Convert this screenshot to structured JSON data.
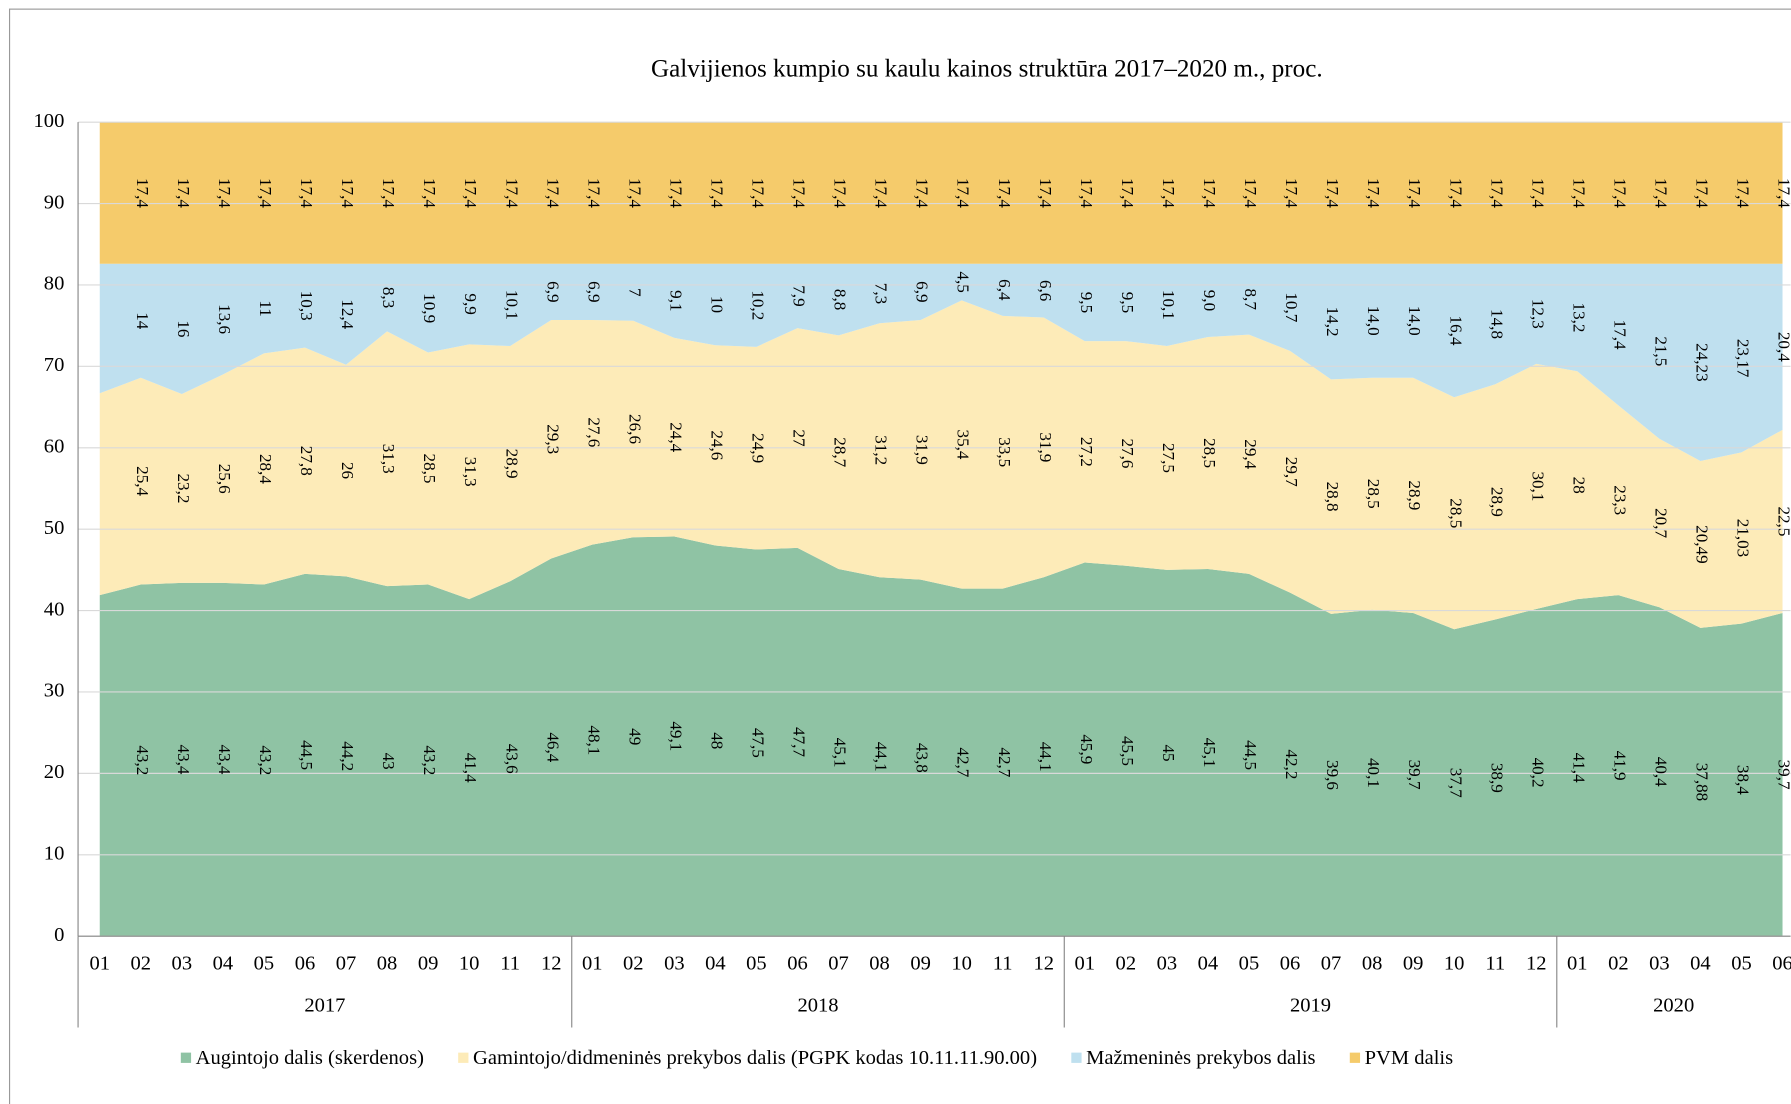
{
  "chart_data": {
    "type": "stacked_area",
    "title": "Galvijienos kumpio su kaulu kainos struktūra 2017–2020 m., proc.",
    "groups": [
      {
        "label": "2017",
        "categories": [
          "01",
          "02",
          "03",
          "04",
          "05",
          "06",
          "07",
          "08",
          "09",
          "10",
          "11",
          "12"
        ]
      },
      {
        "label": "2018",
        "categories": [
          "01",
          "02",
          "03",
          "04",
          "05",
          "06",
          "07",
          "08",
          "09",
          "10",
          "11",
          "12"
        ]
      },
      {
        "label": "2019",
        "categories": [
          "01",
          "02",
          "03",
          "04",
          "05",
          "06",
          "07",
          "08",
          "09",
          "10",
          "11",
          "12"
        ]
      },
      {
        "label": "2020",
        "categories": [
          "01",
          "02",
          "03",
          "04",
          "05",
          "06"
        ]
      }
    ],
    "ylim": [
      0,
      100
    ],
    "yticks": [
      0,
      10,
      20,
      30,
      40,
      50,
      60,
      70,
      80,
      90,
      100
    ],
    "grid": true,
    "legend": "bottom",
    "series": [
      {
        "name": "Augintojo dalis (skerdenos)",
        "color": "#8fc3a4",
        "values": [
          41.9,
          43.2,
          43.4,
          43.4,
          43.2,
          44.5,
          44.2,
          43,
          43.2,
          41.4,
          43.6,
          46.4,
          48.1,
          49,
          49.1,
          48,
          47.5,
          47.7,
          45.1,
          44.1,
          43.8,
          42.7,
          42.7,
          44.1,
          45.9,
          45.5,
          45,
          45.1,
          44.5,
          42.2,
          39.6,
          40.1,
          39.7,
          37.7,
          38.9,
          40.2,
          41.4,
          41.9,
          40.4,
          37.88,
          38.4,
          39.7
        ],
        "value_labels": [
          null,
          "43,2",
          "43,4",
          "43,4",
          "43,2",
          "44,5",
          "44,2",
          "43",
          "43,2",
          "41,4",
          "43,6",
          "46,4",
          "48,1",
          "49",
          "49,1",
          "48",
          "47,5",
          "47,7",
          "45,1",
          "44,1",
          "43,8",
          "42,7",
          "42,7",
          "44,1",
          "45,9",
          "45,5",
          "45",
          "45,1",
          "44,5",
          "42,2",
          "39,6",
          "40,1",
          "39,7",
          "37,7",
          "38,9",
          "40,2",
          "41,4",
          "41,9",
          "40,4",
          "37,88",
          "38,4",
          "39,7"
        ]
      },
      {
        "name": "Gamintojo/didmeninės prekybos dalis (PGPK kodas 10.11.11.90.00)",
        "color": "#fdebb8",
        "values": [
          24.8,
          25.4,
          23.2,
          25.6,
          28.4,
          27.8,
          26,
          31.3,
          28.5,
          31.3,
          28.9,
          29.3,
          27.6,
          26.6,
          24.4,
          24.6,
          24.9,
          27,
          28.7,
          31.2,
          31.9,
          35.4,
          33.5,
          31.9,
          27.2,
          27.6,
          27.5,
          28.5,
          29.4,
          29.7,
          28.8,
          28.5,
          28.9,
          28.5,
          28.9,
          30.1,
          28,
          23.3,
          20.7,
          20.49,
          21.03,
          22.5
        ],
        "value_labels": [
          null,
          "25,4",
          "23,2",
          "25,6",
          "28,4",
          "27,8",
          "26",
          "31,3",
          "28,5",
          "31,3",
          "28,9",
          "29,3",
          "27,6",
          "26,6",
          "24,4",
          "24,6",
          "24,9",
          "27",
          "28,7",
          "31,2",
          "31,9",
          "35,4",
          "33,5",
          "31,9",
          "27,2",
          "27,6",
          "27,5",
          "28,5",
          "29,4",
          "29,7",
          "28,8",
          "28,5",
          "28,9",
          "28,5",
          "28,9",
          "30,1",
          "28",
          "23,3",
          "20,7",
          "20,49",
          "21,03",
          "22,5"
        ]
      },
      {
        "name": "Mažmeninės prekybos dalis",
        "color": "#bfe0ef",
        "values": [
          15.9,
          14,
          16,
          13.6,
          11,
          10.3,
          12.4,
          8.3,
          10.9,
          9.9,
          10.1,
          6.9,
          6.9,
          7,
          9.1,
          10,
          10.2,
          7.9,
          8.8,
          7.3,
          6.9,
          4.5,
          6.4,
          6.6,
          9.5,
          9.5,
          10.1,
          9,
          8.7,
          10.7,
          14.2,
          14,
          14,
          16.4,
          14.8,
          12.3,
          13.2,
          17.4,
          21.5,
          24.23,
          23.17,
          20.4
        ],
        "value_labels": [
          null,
          "14",
          "16",
          "13,6",
          "11",
          "10,3",
          "12,4",
          "8,3",
          "10,9",
          "9,9",
          "10,1",
          "6,9",
          "6,9",
          "7",
          "9,1",
          "10",
          "10,2",
          "7,9",
          "8,8",
          "7,3",
          "6,9",
          "4,5",
          "6,4",
          "6,6",
          "9,5",
          "9,5",
          "10,1",
          "9,0",
          "8,7",
          "10,7",
          "14,2",
          "14,0",
          "14,0",
          "16,4",
          "14,8",
          "12,3",
          "13,2",
          "17,4",
          "21,5",
          "24,23",
          "23,17",
          "20,4"
        ]
      },
      {
        "name": "PVM dalis",
        "color": "#f5cb6b",
        "values": [
          17.4,
          17.4,
          17.4,
          17.4,
          17.4,
          17.4,
          17.4,
          17.4,
          17.4,
          17.4,
          17.4,
          17.4,
          17.4,
          17.4,
          17.4,
          17.4,
          17.4,
          17.4,
          17.4,
          17.4,
          17.4,
          17.4,
          17.4,
          17.4,
          17.4,
          17.4,
          17.4,
          17.4,
          17.4,
          17.4,
          17.4,
          17.4,
          17.4,
          17.4,
          17.4,
          17.4,
          17.4,
          17.4,
          17.4,
          17.4,
          17.4,
          17.4
        ],
        "value_labels": [
          null,
          "17,4",
          "17,4",
          "17,4",
          "17,4",
          "17,4",
          "17,4",
          "17,4",
          "17,4",
          "17,4",
          "17,4",
          "17,4",
          "17,4",
          "17,4",
          "17,4",
          "17,4",
          "17,4",
          "17,4",
          "17,4",
          "17,4",
          "17,4",
          "17,4",
          "17,4",
          "17,4",
          "17,4",
          "17,4",
          "17,4",
          "17,4",
          "17,4",
          "17,4",
          "17,4",
          "17,4",
          "17,4",
          "17,4",
          "17,4",
          "17,4",
          "17,4",
          "17,4",
          "17,4",
          "17,4",
          "17,4",
          "17,4"
        ]
      }
    ]
  }
}
